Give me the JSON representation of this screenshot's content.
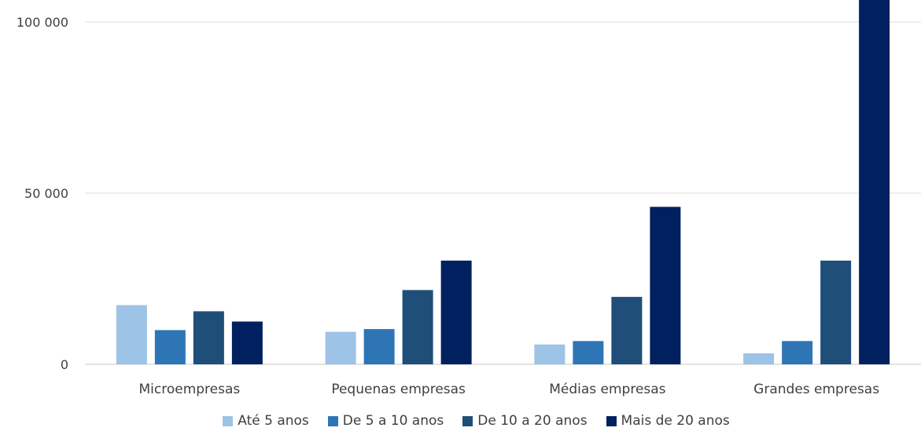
{
  "chart_data": {
    "type": "bar",
    "categories": [
      "Microempresas",
      "Pequenas empresas",
      "Médias empresas",
      "Grandes empresas"
    ],
    "series": [
      {
        "name": "Até 5 anos",
        "color": "#9dc3e6",
        "values": [
          17300,
          9500,
          5800,
          3200
        ]
      },
      {
        "name": "De 5 a 10 anos",
        "color": "#2e75b6",
        "values": [
          10000,
          10300,
          6800,
          6800
        ]
      },
      {
        "name": "De 10 a 20 anos",
        "color": "#1f4e79",
        "values": [
          15500,
          21700,
          19700,
          30300
        ]
      },
      {
        "name": "Mais de 20 anos",
        "color": "#002060",
        "values": [
          12500,
          30300,
          46000,
          107500
        ]
      }
    ],
    "yticks": [
      {
        "value": 0,
        "label": "0"
      },
      {
        "value": 50000,
        "label": "50 000"
      },
      {
        "value": 100000,
        "label": "100 000"
      }
    ],
    "ylim": [
      0,
      100000
    ],
    "grid": true,
    "legend": "bottom"
  }
}
